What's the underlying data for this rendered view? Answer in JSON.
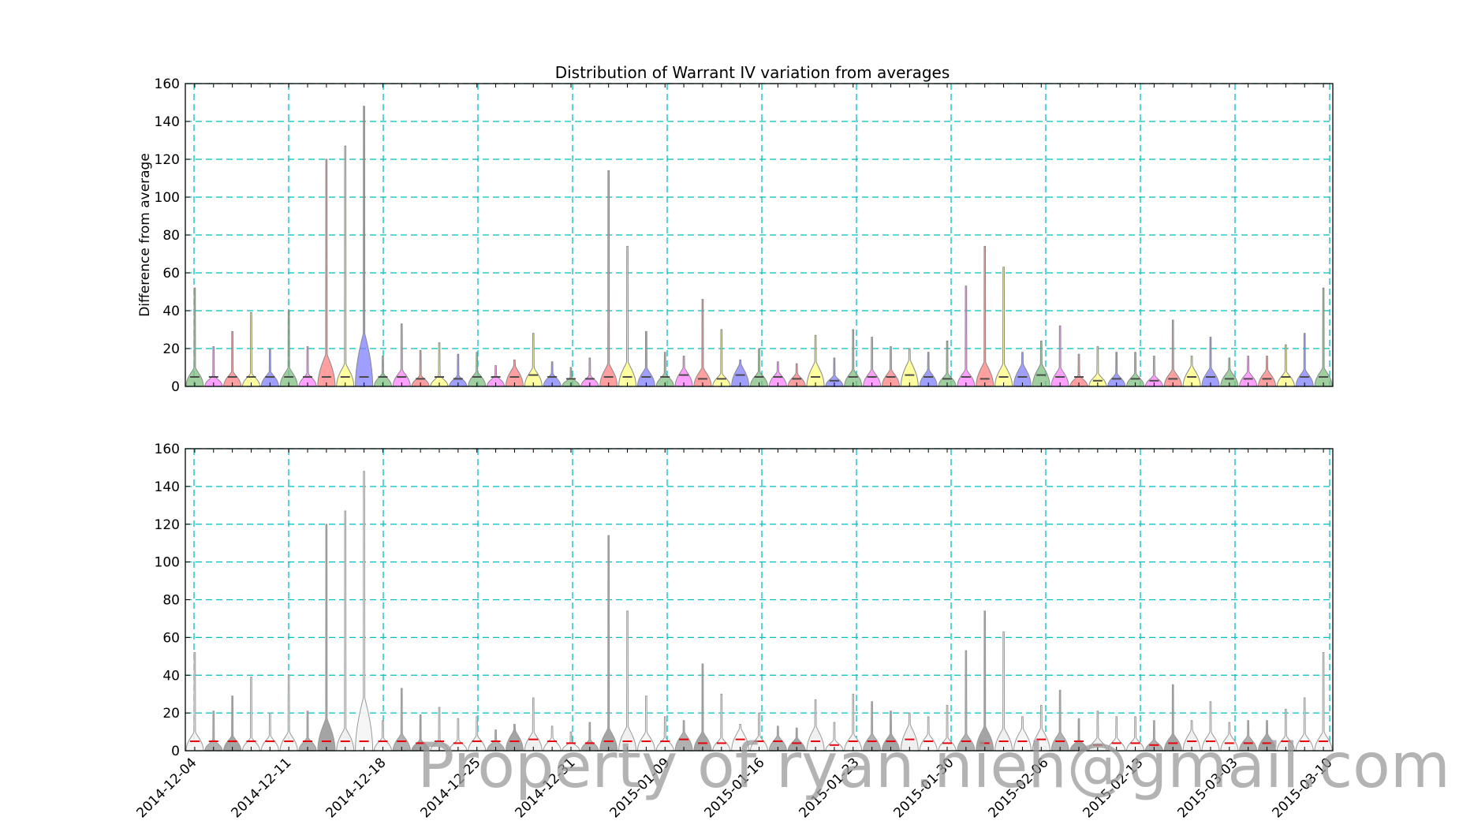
{
  "chart_data": {
    "type": "violin",
    "title": "Distribution of Warrant IV variation from averages",
    "ylabel": "Difference from average",
    "xlabel": "",
    "ylim": [
      0,
      160
    ],
    "yticks": [
      0,
      20,
      40,
      60,
      80,
      100,
      120,
      140,
      160
    ],
    "grid": true,
    "xtick_labels": [
      "2014-12-04",
      "2014-12-11",
      "2014-12-18",
      "2014-12-25",
      "2014-12-31",
      "2015-01-09",
      "2015-01-16",
      "2015-01-23",
      "2015-01-30",
      "2015-02-06",
      "2015-02-13",
      "2015-03-03",
      "2015-03-10"
    ],
    "colors": [
      "#7fbf7f",
      "#ff7fff",
      "#ff7f7f",
      "#ffff7f",
      "#7f7fff"
    ],
    "max_values": [
      52,
      21,
      29,
      39,
      20,
      40,
      21,
      120,
      127,
      148,
      16,
      33,
      19,
      23,
      17,
      18,
      11,
      14,
      28,
      13,
      10,
      15,
      114,
      74,
      29,
      18,
      16,
      46,
      30,
      14,
      20,
      13,
      12,
      27,
      15,
      30,
      26,
      21,
      20,
      18,
      24,
      53,
      74,
      63,
      18,
      24,
      32,
      17,
      21,
      18,
      18,
      16,
      35,
      16,
      26,
      15,
      16,
      16,
      22,
      28,
      52
    ],
    "median_values": [
      5,
      5,
      5,
      5,
      5,
      5,
      5,
      5,
      5,
      5,
      5,
      5,
      4,
      5,
      4,
      5,
      5,
      5,
      6,
      5,
      4,
      4,
      5,
      5,
      5,
      5,
      6,
      4,
      4,
      6,
      5,
      5,
      4,
      5,
      3,
      5,
      5,
      5,
      6,
      5,
      4,
      5,
      4,
      5,
      5,
      6,
      5,
      5,
      3,
      4,
      4,
      3,
      4,
      5,
      5,
      4,
      4,
      4,
      5,
      5,
      5
    ],
    "body_heights": [
      10,
      6,
      8,
      7,
      8,
      10,
      7,
      17,
      12,
      28,
      7,
      9,
      6,
      6,
      6,
      8,
      6,
      11,
      10,
      7,
      5,
      6,
      12,
      13,
      10,
      7,
      10,
      10,
      7,
      12,
      8,
      8,
      7,
      13,
      6,
      9,
      9,
      9,
      14,
      9,
      7,
      9,
      13,
      12,
      12,
      12,
      10,
      6,
      7,
      7,
      7,
      6,
      9,
      11,
      10,
      9,
      8,
      9,
      8,
      9,
      10
    ],
    "annotations": [
      "Property of ryan.nieh@gmail.com"
    ]
  }
}
